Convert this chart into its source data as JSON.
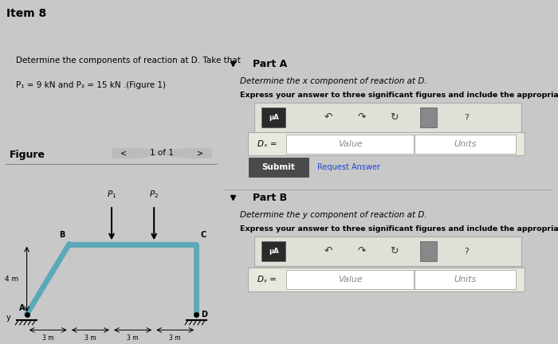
{
  "title": "Item 8",
  "problem_text_line1": "Determine the components of reaction at D. Take that",
  "problem_text_line2": "P₁ = 9 kN and P₂ = 15 kN .(Figure 1)",
  "figure_label": "Figure",
  "nav_text": "1 of 1",
  "part_a_label": "Part A",
  "part_a_text1": "Determine the x component of reaction at D.",
  "part_a_text2": "Express your answer to three significant figures and include the appropriate units.",
  "part_b_label": "Part B",
  "part_b_text1": "Determine the y component of reaction at D.",
  "part_b_text2": "Express your answer to three significant figures and include the appropriate units.",
  "submit_text": "Submit",
  "request_answer_text": "Request Answer",
  "dx_label": "Dₓ =",
  "dy_label": "Dᵧ =",
  "value_placeholder": "Value",
  "units_placeholder": "Units",
  "bg_color": "#c8c8c8",
  "panel_left_color": "#b8ccd4",
  "panel_right_color": "#d0d0d0",
  "struct_color": "#5ba8b8",
  "ground_color": "#888888",
  "toolbar_color": "#2a2a2a",
  "submit_btn_color": "#4a4a4a",
  "input_box_color": "#e8e8dc",
  "input_box_border": "#aaaaaa"
}
